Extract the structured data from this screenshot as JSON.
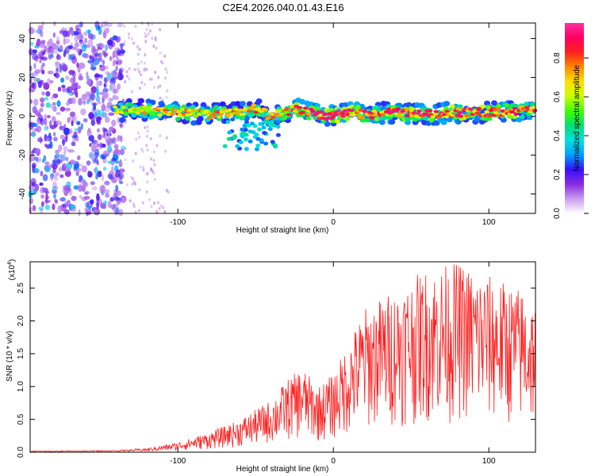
{
  "title": "C2E4.2026.040.01.43.E16",
  "chart_data": [
    {
      "type": "heatmap",
      "name": "spectrogram",
      "xlabel": "Height of straight line (km)",
      "ylabel": "Frequency (Hz)",
      "xlim": [
        -195,
        130
      ],
      "ylim": [
        -50,
        48
      ],
      "xticks": [
        -100,
        0,
        100
      ],
      "yticks": [
        -40,
        -20,
        0,
        20,
        40
      ],
      "colorbar": {
        "label": "Normalized spectral amplitude",
        "range": [
          0,
          0.98
        ],
        "ticks": [
          "0.0",
          "0.2",
          "0.4",
          "0.6",
          "0.8"
        ],
        "tick_values": [
          0,
          0.2,
          0.4,
          0.6,
          0.8
        ],
        "colors": [
          "#ffffff",
          "#c89cf0",
          "#8a2be2",
          "#3311ff",
          "#00a0ff",
          "#00e0e0",
          "#00e070",
          "#40ff00",
          "#c8ff00",
          "#ffe000",
          "#ff8800",
          "#ff2020",
          "#ff0060",
          "#ff30a0"
        ]
      },
      "noise_region": {
        "x_range": [
          -195,
          -135
        ],
        "freq_range": [
          -50,
          48
        ]
      },
      "ridge": {
        "x": [
          -140,
          -120,
          -100,
          -80,
          -60,
          -50,
          -45,
          -40,
          -35,
          -30,
          -25,
          -20,
          -10,
          0,
          10,
          20,
          40,
          60,
          80,
          100,
          120,
          130
        ],
        "freq": [
          3,
          3,
          2,
          1,
          2,
          4,
          2,
          0,
          1,
          2,
          4,
          3,
          1,
          0,
          2,
          1,
          2,
          1,
          2,
          2,
          3,
          3
        ],
        "amplitude": [
          0.35,
          0.4,
          0.4,
          0.42,
          0.45,
          0.45,
          0.4,
          0.4,
          0.4,
          0.45,
          0.8,
          0.75,
          0.85,
          0.9,
          0.85,
          0.7,
          0.7,
          0.75,
          0.8,
          0.75,
          0.65,
          0.6
        ]
      }
    },
    {
      "type": "line",
      "name": "snr",
      "xlabel": "Height of straight line (km)",
      "ylabel": "SNR (10 * v/v)",
      "scale_label": "(x10",
      "scale_exponent": "4",
      "xlim": [
        -195,
        130
      ],
      "ylim": [
        0,
        2.9
      ],
      "xticks": [
        -100,
        0,
        100
      ],
      "yticks": [
        "0.0",
        "0.5",
        "1.0",
        "1.5",
        "2.0",
        "2.5"
      ],
      "ytick_values": [
        0,
        0.5,
        1.0,
        1.5,
        2.0,
        2.5
      ],
      "color": "#ff2020",
      "envelope": {
        "x": [
          -195,
          -140,
          -120,
          -100,
          -80,
          -60,
          -40,
          -30,
          -20,
          -10,
          0,
          10,
          20,
          40,
          60,
          80,
          100,
          120,
          130
        ],
        "max_snr": [
          0.02,
          0.03,
          0.06,
          0.15,
          0.3,
          0.5,
          0.8,
          1.1,
          1.3,
          1.0,
          1.2,
          1.7,
          2.2,
          2.5,
          2.8,
          2.9,
          2.7,
          2.5,
          2.3
        ]
      }
    }
  ]
}
